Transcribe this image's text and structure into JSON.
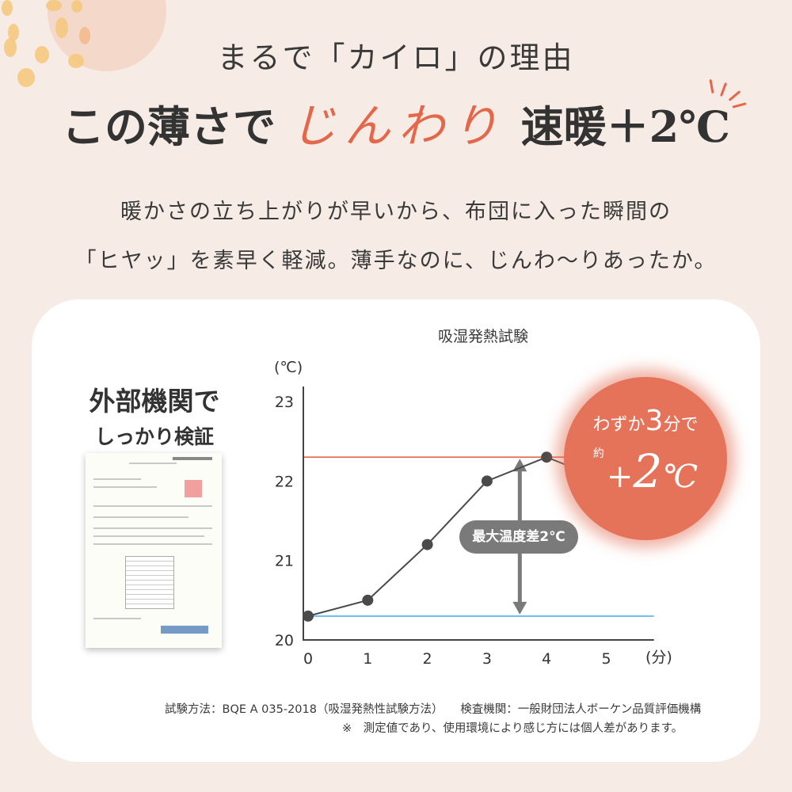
{
  "header": {
    "kicker": "まるで「カイロ」の理由",
    "headline_pre": "この薄さで",
    "headline_accent": "じんわり",
    "headline_post": "速暖＋2℃"
  },
  "lead": {
    "line1": "暖かさの立ち上がりが早いから、布団に入った瞬間の",
    "line2": "「ヒヤッ」を素早く軽減。薄手なのに、じんわ〜りあったか。"
  },
  "verification": {
    "line1": "外部機関で",
    "line2": "しっかり検証",
    "document_image": "test-report-document"
  },
  "badge": {
    "pre": "わずか",
    "num": "3",
    "post": "分で",
    "yaku": "約",
    "plus": "+",
    "value": "2",
    "unit": "℃"
  },
  "colors": {
    "accent": "#e4674a",
    "upper_line": "#e4674a",
    "lower_line": "#4fb3e8",
    "series": "#4a4a4a",
    "background": "#f7ebe5"
  },
  "chart_data": {
    "type": "line",
    "title": "吸湿発熱試験",
    "ylabel": "(℃)",
    "xlabel": "(分)",
    "x": [
      0,
      1,
      2,
      3,
      4,
      5
    ],
    "values": [
      20.3,
      20.5,
      21.2,
      22.0,
      22.3,
      22.0
    ],
    "xlim": [
      0,
      5.8
    ],
    "ylim": [
      20,
      23
    ],
    "xticks": [
      "0",
      "1",
      "2",
      "3",
      "4",
      "5"
    ],
    "yticks": [
      "20",
      "21",
      "22",
      "23"
    ],
    "reference_lines": [
      {
        "y": 22.3,
        "color": "#e4674a"
      },
      {
        "y": 20.3,
        "color": "#4fb3e8"
      }
    ],
    "annotation": "最大温度差2℃",
    "grid": false
  },
  "footer": {
    "method": "試験方法：BQE A 035-2018（吸湿発熱性試験方法）　　検査機関：一般財団法人ボーケン品質評価機構",
    "note": "※　測定値であり、使用環境により感じ方には個人差があります。"
  }
}
